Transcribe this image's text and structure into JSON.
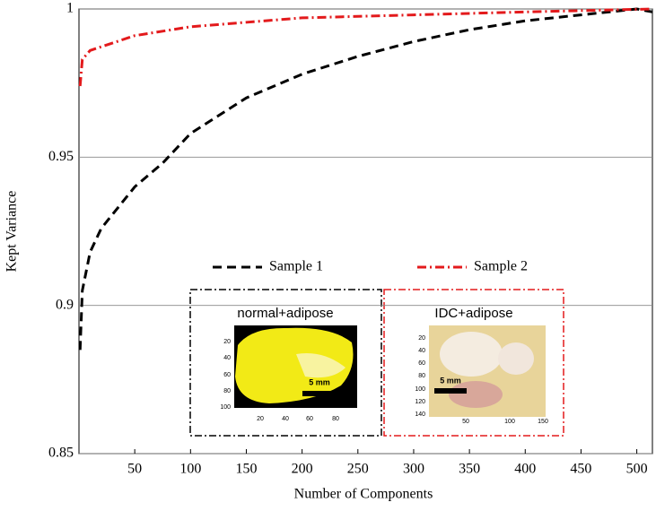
{
  "chart_data": {
    "type": "line",
    "x_label": "Number of Components",
    "y_label": "Kept Variance",
    "xlim": [
      0,
      514
    ],
    "ylim": [
      0.85,
      1
    ],
    "xticks": [
      50,
      100,
      150,
      200,
      250,
      300,
      350,
      400,
      450,
      500
    ],
    "yticks": [
      0.85,
      0.9,
      0.95,
      1
    ],
    "grid": true,
    "legend": "center",
    "series": [
      {
        "name": "Sample 1",
        "color": "#000000",
        "dash": "10,6",
        "x": [
          1,
          3,
          10,
          20,
          50,
          75,
          100,
          150,
          200,
          250,
          300,
          350,
          400,
          450,
          500,
          514
        ],
        "values": [
          0.885,
          0.905,
          0.918,
          0.926,
          0.94,
          0.948,
          0.958,
          0.97,
          0.978,
          0.984,
          0.989,
          0.993,
          0.996,
          0.998,
          1.0,
          0.999
        ]
      },
      {
        "name": "Sample 2",
        "color": "#e31a1c",
        "dash": "10,4,2,4",
        "x": [
          1,
          3,
          10,
          50,
          100,
          200,
          300,
          400,
          514
        ],
        "values": [
          0.974,
          0.983,
          0.986,
          0.991,
          0.994,
          0.997,
          0.998,
          0.999,
          1.0
        ]
      }
    ],
    "insets": [
      {
        "title": "normal+adipose",
        "scale_label": "5 mm",
        "yticks": [
          "20",
          "40",
          "60",
          "80",
          "100"
        ],
        "xticks": [
          "20",
          "40",
          "60",
          "80"
        ]
      },
      {
        "title": "IDC+adipose",
        "scale_label": "5 mm",
        "yticks": [
          "20",
          "40",
          "60",
          "80",
          "100",
          "120",
          "140"
        ],
        "xticks": [
          "50",
          "100",
          "150"
        ]
      }
    ]
  }
}
